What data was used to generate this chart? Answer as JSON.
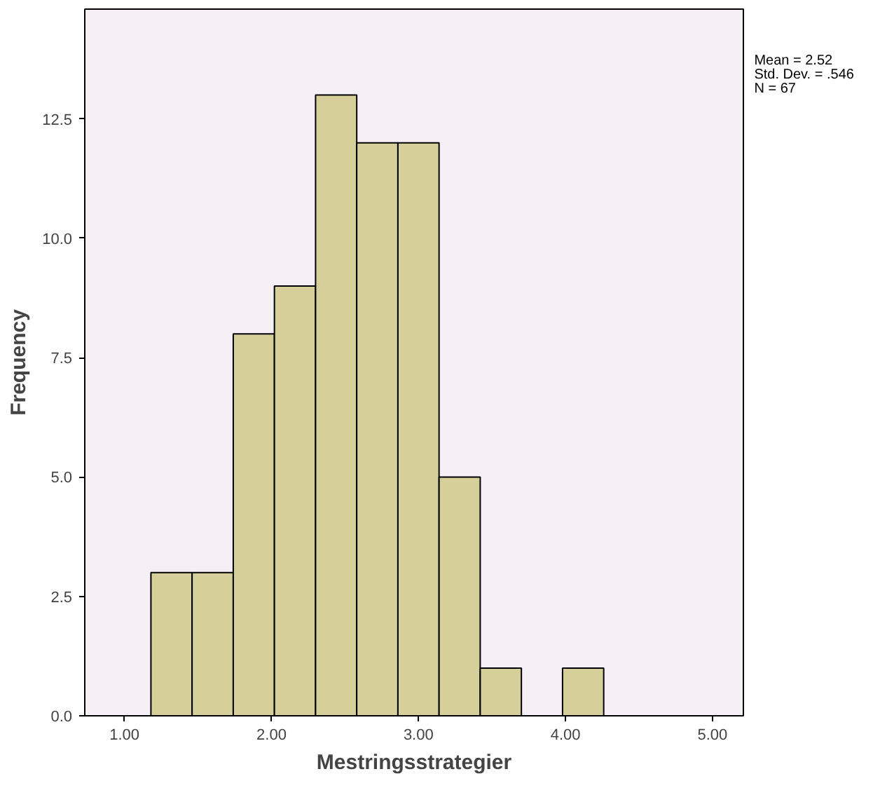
{
  "chart_data": {
    "type": "histogram",
    "xlabel": "Mestringsstrategier",
    "ylabel": "Frequency",
    "bins": [
      1.18,
      1.46,
      1.74,
      2.02,
      2.3,
      2.58,
      2.86,
      3.14,
      3.42,
      3.7,
      3.98,
      4.26
    ],
    "values": [
      3,
      3,
      8,
      9,
      13,
      12,
      12,
      5,
      1,
      0,
      1
    ],
    "color": "#d6cf9a",
    "xlim": [
      0.73,
      5.21
    ],
    "xticks": [
      {
        "value": 1,
        "label": "1.00"
      },
      {
        "value": 2,
        "label": "2.00"
      },
      {
        "value": 3,
        "label": "3.00"
      },
      {
        "value": 4,
        "label": "4.00"
      },
      {
        "value": 5,
        "label": "5.00"
      }
    ],
    "ylim": [
      0,
      14.8
    ],
    "yticks": [
      {
        "value": 0,
        "label": "0.0"
      },
      {
        "value": 2.5,
        "label": "2.5"
      },
      {
        "value": 5,
        "label": "5.0"
      },
      {
        "value": 7.5,
        "label": "7.5"
      },
      {
        "value": 10,
        "label": "10.0"
      },
      {
        "value": 12.5,
        "label": "12.5"
      }
    ],
    "grid": false,
    "annotations": [
      "Mean = 2.52",
      "Std. Dev. = .546",
      "N = 67"
    ]
  }
}
